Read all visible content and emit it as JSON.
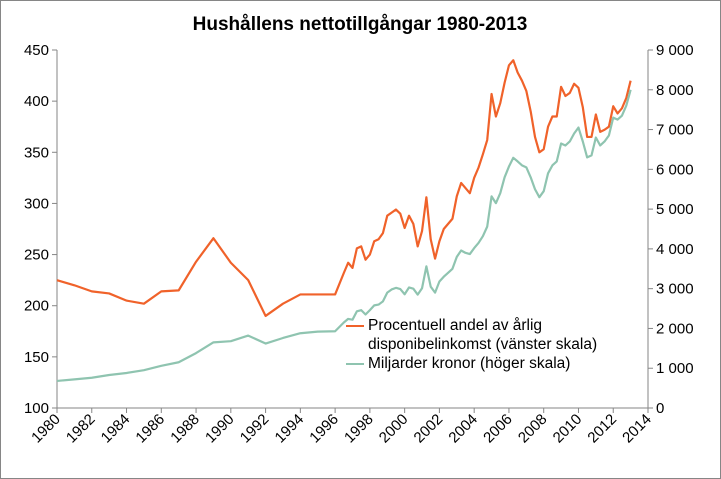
{
  "chart_data": {
    "type": "line",
    "title": "Hushållens nettotillgångar 1980-2013",
    "x": [
      1980,
      1981,
      1982,
      1983,
      1984,
      1985,
      1986,
      1987,
      1988,
      1989,
      1990,
      1991,
      1992,
      1993,
      1994,
      1995,
      1996.0,
      1996.5,
      1996.75,
      1997.0,
      1997.25,
      1997.5,
      1997.75,
      1998.0,
      1998.25,
      1998.5,
      1998.75,
      1999.0,
      1999.25,
      1999.5,
      1999.75,
      2000.0,
      2000.25,
      2000.5,
      2000.75,
      2001.0,
      2001.25,
      2001.5,
      2001.75,
      2002.0,
      2002.25,
      2002.5,
      2002.75,
      2003.0,
      2003.25,
      2003.5,
      2003.75,
      2004.0,
      2004.25,
      2004.5,
      2004.75,
      2005.0,
      2005.25,
      2005.5,
      2005.75,
      2006.0,
      2006.25,
      2006.5,
      2006.75,
      2007.0,
      2007.25,
      2007.5,
      2007.75,
      2008.0,
      2008.25,
      2008.5,
      2008.75,
      2009.0,
      2009.25,
      2009.5,
      2009.75,
      2010.0,
      2010.25,
      2010.5,
      2010.75,
      2011.0,
      2011.25,
      2011.5,
      2011.75,
      2012.0,
      2012.25,
      2012.5,
      2012.75,
      2013.0
    ],
    "series": [
      {
        "name": "Procentuell andel av årlig disponibelinkomst (vänster skala)",
        "color": "#f0622a",
        "axis": "y",
        "values": [
          225,
          220,
          214,
          212,
          205,
          202,
          214,
          215,
          243,
          266,
          242,
          225,
          190,
          202,
          211,
          211,
          211,
          232,
          242,
          237,
          256,
          258,
          245,
          250,
          263,
          265,
          271,
          288,
          291,
          294,
          290,
          276,
          288,
          280,
          258,
          273,
          306,
          265,
          246,
          263,
          275,
          280,
          285,
          307,
          320,
          315,
          310,
          325,
          335,
          348,
          362,
          407,
          385,
          398,
          418,
          435,
          440,
          428,
          420,
          410,
          390,
          365,
          350,
          353,
          375,
          385,
          385,
          414,
          405,
          408,
          417,
          413,
          394,
          365,
          365,
          387,
          370,
          372,
          375,
          395,
          388,
          393,
          403,
          420
        ]
      },
      {
        "name": "Miljarder kronor (höger skala)",
        "color": "#8fc4b0",
        "axis": "y2",
        "values": [
          680,
          720,
          760,
          830,
          880,
          950,
          1060,
          1150,
          1380,
          1650,
          1680,
          1820,
          1620,
          1760,
          1880,
          1920,
          1930,
          2150,
          2240,
          2220,
          2430,
          2460,
          2350,
          2460,
          2580,
          2600,
          2680,
          2900,
          2980,
          3020,
          2990,
          2860,
          3030,
          3000,
          2850,
          3010,
          3560,
          3050,
          2900,
          3180,
          3300,
          3400,
          3500,
          3800,
          3960,
          3900,
          3870,
          4020,
          4150,
          4320,
          4560,
          5320,
          5150,
          5400,
          5800,
          6070,
          6290,
          6200,
          6100,
          6050,
          5800,
          5500,
          5300,
          5450,
          5900,
          6100,
          6200,
          6650,
          6600,
          6700,
          6900,
          7050,
          6700,
          6300,
          6350,
          6800,
          6600,
          6700,
          6850,
          7300,
          7250,
          7350,
          7600,
          8000
        ]
      }
    ],
    "xlim": [
      1980,
      2014
    ],
    "xticks": [
      1980,
      1982,
      1984,
      1986,
      1988,
      1990,
      1992,
      1994,
      1996,
      1998,
      2000,
      2002,
      2004,
      2006,
      2008,
      2010,
      2012,
      2014
    ],
    "ylim": [
      100,
      450
    ],
    "yticks": [
      100,
      150,
      200,
      250,
      300,
      350,
      400,
      450
    ],
    "y2lim": [
      0,
      9000
    ],
    "y2ticks": [
      0,
      {
        "value": 1000,
        "label": "1 000"
      },
      {
        "value": 2000,
        "label": "2 000"
      },
      {
        "value": 3000,
        "label": "3 000"
      },
      {
        "value": 4000,
        "label": "4 000"
      },
      {
        "value": 5000,
        "label": "5 000"
      },
      {
        "value": 6000,
        "label": "6 000"
      },
      {
        "value": 7000,
        "label": "7 000"
      },
      {
        "value": 8000,
        "label": "8 000"
      },
      {
        "value": 9000,
        "label": "9 000"
      }
    ]
  }
}
